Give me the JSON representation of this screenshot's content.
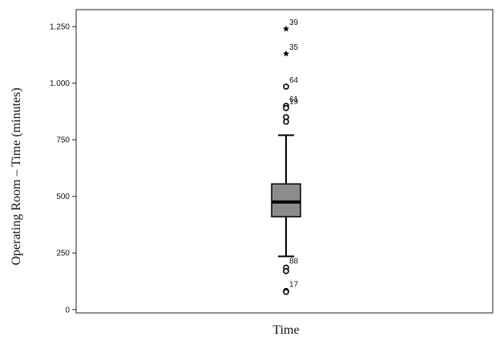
{
  "chart_data": {
    "type": "boxplot",
    "xlabel": "Time",
    "ylabel": "Operating Room – Time (minutes)",
    "ylim": [
      -15,
      1325
    ],
    "yticks": [
      {
        "value": 0,
        "label": "0"
      },
      {
        "value": 250,
        "label": "250"
      },
      {
        "value": 500,
        "label": "500"
      },
      {
        "value": 750,
        "label": "750"
      },
      {
        "value": 1000,
        "label": "1.000"
      },
      {
        "value": 1250,
        "label": "1.250"
      }
    ],
    "category": "Time",
    "box": {
      "q1": 410,
      "median": 475,
      "q3": 555,
      "whisker_low": 235,
      "whisker_high": 770,
      "fill_color": "#8c8c8c"
    },
    "outliers": [
      {
        "value": 1240,
        "marker": "star",
        "label": "39"
      },
      {
        "value": 1130,
        "marker": "star",
        "label": "35"
      },
      {
        "value": 985,
        "marker": "circle",
        "label": "64"
      },
      {
        "value": 900,
        "marker": "circle",
        "label": "61"
      },
      {
        "value": 890,
        "marker": "circle",
        "label": "19"
      },
      {
        "value": 850,
        "marker": "circle",
        "label": ""
      },
      {
        "value": 830,
        "marker": "circle",
        "label": ""
      },
      {
        "value": 185,
        "marker": "circle",
        "label": "88"
      },
      {
        "value": 170,
        "marker": "circle",
        "label": ""
      },
      {
        "value": 82,
        "marker": "circle",
        "label": "17"
      },
      {
        "value": 78,
        "marker": "circle",
        "label": ""
      }
    ]
  }
}
